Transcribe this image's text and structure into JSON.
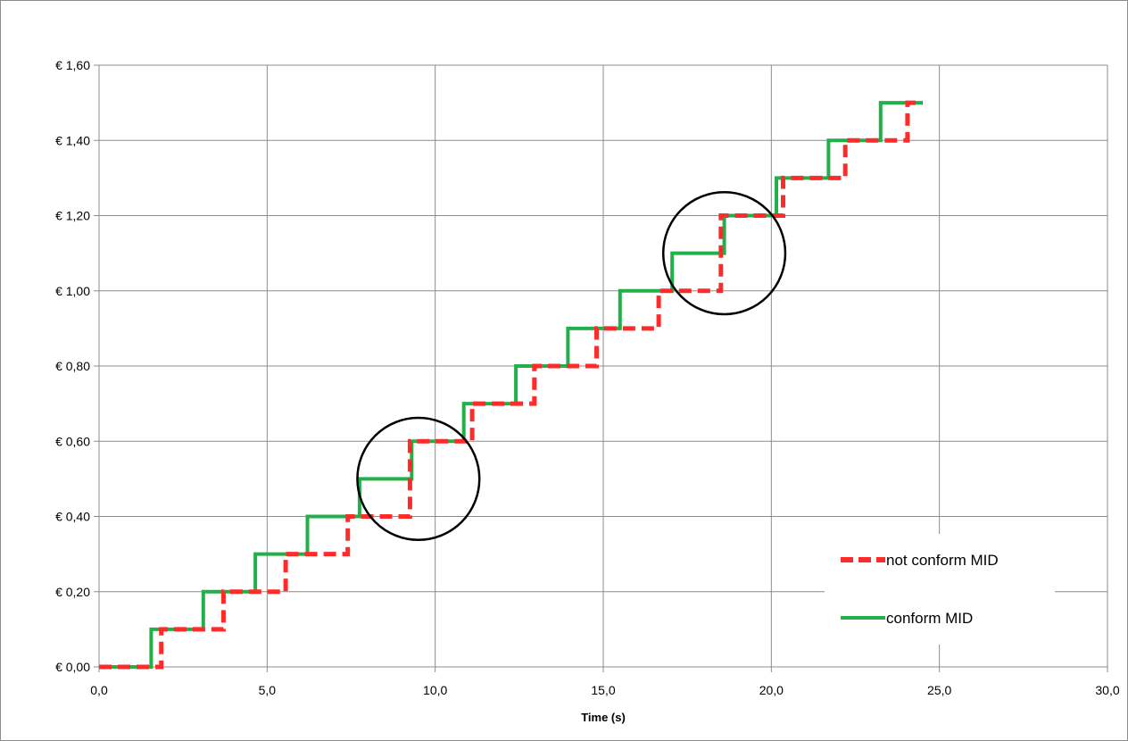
{
  "chart_data": {
    "type": "line",
    "title": "",
    "xlabel": "Time (s)",
    "ylabel": "",
    "xlim": [
      0,
      30
    ],
    "ylim": [
      0,
      1.6
    ],
    "x_ticks": [
      "0,0",
      "5,0",
      "10,0",
      "15,0",
      "20,0",
      "25,0",
      "30,0"
    ],
    "y_ticks": [
      "€ 0,00",
      "€ 0,20",
      "€ 0,40",
      "€ 0,60",
      "€ 0,80",
      "€ 1,00",
      "€ 1,20",
      "€ 1,40",
      "€ 1,60"
    ],
    "grid": true,
    "legend_position": "bottom-right",
    "series": [
      {
        "name": "not conform MID",
        "style": "dashed-step",
        "color": "#ff2a2a",
        "x": [
          0,
          1.85,
          1.85,
          3.7,
          3.7,
          5.55,
          5.55,
          7.4,
          7.4,
          9.25,
          9.25,
          11.1,
          11.1,
          12.95,
          12.95,
          14.8,
          14.8,
          16.65,
          16.65,
          18.5,
          18.5,
          20.35,
          20.35,
          22.2,
          22.2,
          24.05,
          24.05,
          24.5
        ],
        "y": [
          0,
          0,
          0.1,
          0.1,
          0.2,
          0.2,
          0.3,
          0.3,
          0.4,
          0.4,
          0.6,
          0.6,
          0.7,
          0.7,
          0.8,
          0.8,
          0.9,
          0.9,
          1.0,
          1.0,
          1.2,
          1.2,
          1.3,
          1.3,
          1.4,
          1.4,
          1.5,
          1.5
        ]
      },
      {
        "name": "conform MID",
        "style": "solid-step",
        "color": "#22b04b",
        "x": [
          0,
          1.55,
          1.55,
          3.1,
          3.1,
          4.65,
          4.65,
          6.2,
          6.2,
          7.75,
          7.75,
          9.3,
          9.3,
          10.85,
          10.85,
          12.4,
          12.4,
          13.95,
          13.95,
          15.5,
          15.5,
          17.05,
          17.05,
          18.6,
          18.6,
          20.15,
          20.15,
          21.7,
          21.7,
          23.25,
          23.25,
          24.5
        ],
        "y": [
          0,
          0,
          0.1,
          0.1,
          0.2,
          0.2,
          0.3,
          0.3,
          0.4,
          0.4,
          0.5,
          0.5,
          0.6,
          0.6,
          0.7,
          0.7,
          0.8,
          0.8,
          0.9,
          0.9,
          1.0,
          1.0,
          1.1,
          1.1,
          1.2,
          1.2,
          1.3,
          1.3,
          1.4,
          1.4,
          1.5,
          1.5
        ]
      }
    ],
    "annotations": [
      {
        "type": "circle",
        "cx": 9.5,
        "cy": 0.5,
        "rx": 3.1,
        "color": "#000000"
      },
      {
        "type": "circle",
        "cx": 18.6,
        "cy": 1.1,
        "rx": 3.1,
        "color": "#000000"
      }
    ]
  }
}
